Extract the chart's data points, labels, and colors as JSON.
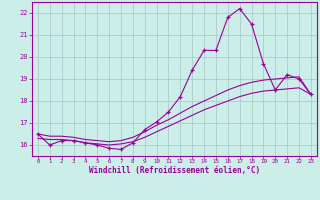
{
  "title": "",
  "xlabel": "Windchill (Refroidissement éolien,°C)",
  "bg_color": "#cceee8",
  "line_color": "#990099",
  "grid_color": "#aacccc",
  "xlim": [
    -0.5,
    23.5
  ],
  "ylim": [
    15.5,
    22.5
  ],
  "xticks": [
    0,
    1,
    2,
    3,
    4,
    5,
    6,
    7,
    8,
    9,
    10,
    11,
    12,
    13,
    14,
    15,
    16,
    17,
    18,
    19,
    20,
    21,
    22,
    23
  ],
  "yticks": [
    16,
    17,
    18,
    19,
    20,
    21,
    22
  ],
  "hours": [
    0,
    1,
    2,
    3,
    4,
    5,
    6,
    7,
    8,
    9,
    10,
    11,
    12,
    13,
    14,
    15,
    16,
    17,
    18,
    19,
    20,
    21,
    22,
    23
  ],
  "main_line": [
    16.5,
    16.0,
    16.2,
    16.2,
    16.1,
    16.0,
    15.85,
    15.8,
    16.1,
    16.7,
    17.05,
    17.5,
    18.2,
    19.4,
    20.3,
    20.3,
    21.8,
    22.2,
    21.5,
    19.7,
    18.5,
    19.2,
    19.0,
    18.3
  ],
  "trend_line1": [
    16.3,
    16.25,
    16.25,
    16.2,
    16.1,
    16.05,
    16.0,
    16.05,
    16.15,
    16.35,
    16.6,
    16.85,
    17.1,
    17.35,
    17.6,
    17.8,
    18.0,
    18.2,
    18.35,
    18.45,
    18.5,
    18.55,
    18.6,
    18.3
  ],
  "trend_line2": [
    16.5,
    16.4,
    16.4,
    16.35,
    16.25,
    16.2,
    16.15,
    16.2,
    16.35,
    16.6,
    16.9,
    17.15,
    17.45,
    17.75,
    18.0,
    18.25,
    18.5,
    18.7,
    18.85,
    18.95,
    19.0,
    19.05,
    19.1,
    18.3
  ]
}
